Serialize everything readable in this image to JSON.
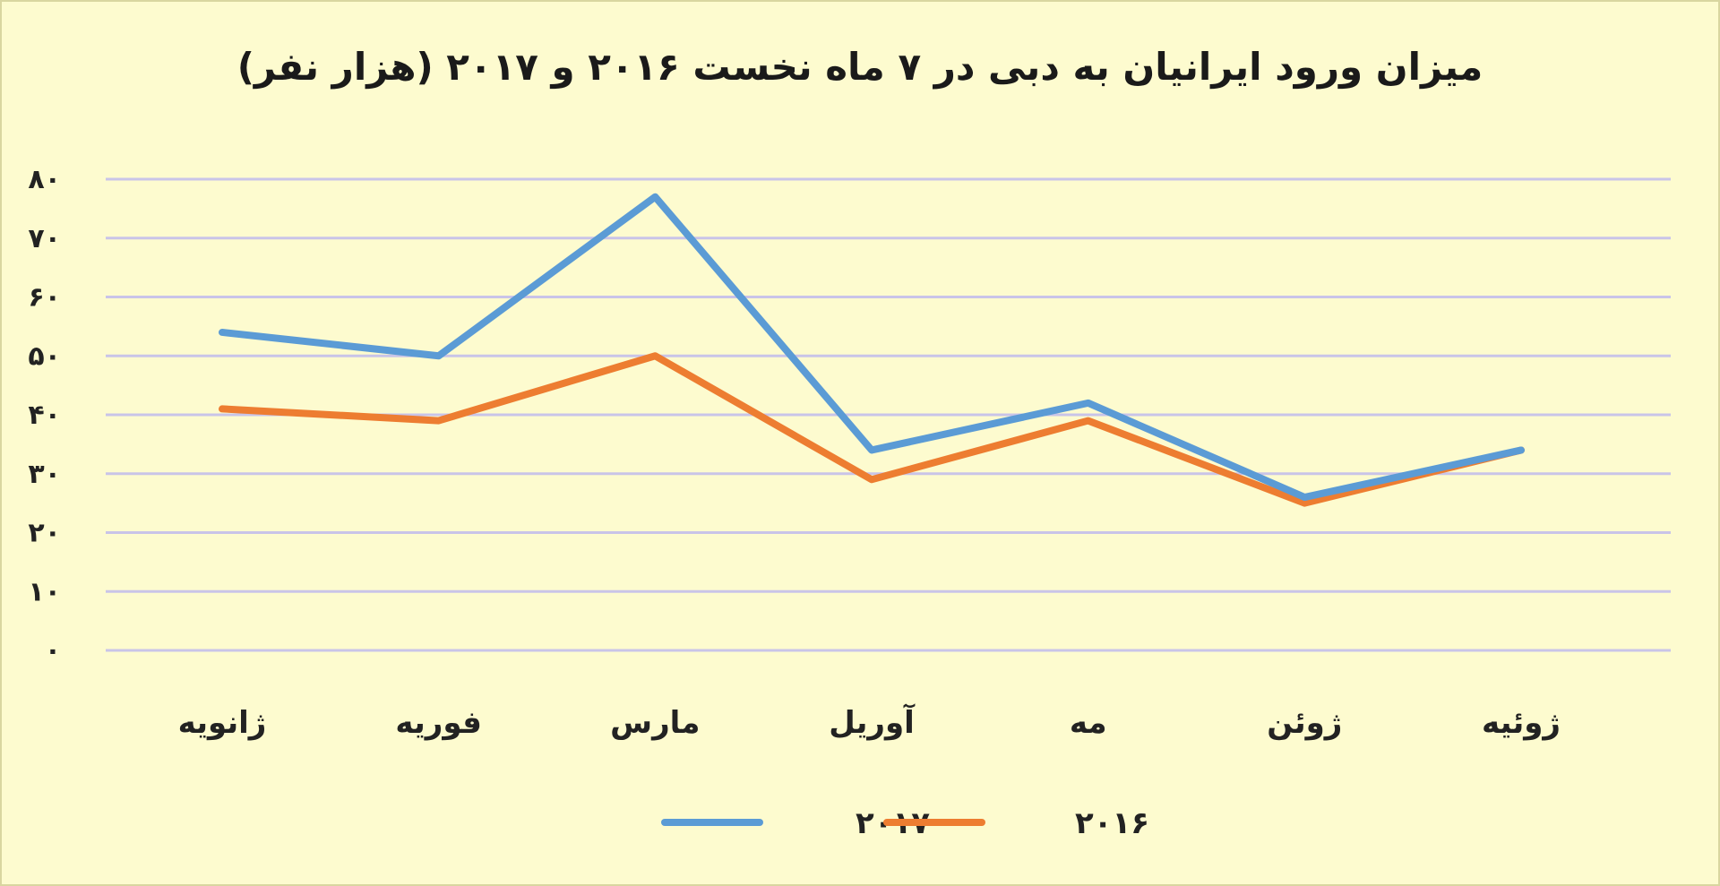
{
  "chart_data": {
    "type": "line",
    "title": "میزان ورود ایرانیان به دبی در ۷ ماه نخست ۲۰۱۶ و ۲۰۱۷ (هزار نفر)",
    "categories": [
      "ژانویه",
      "فوریه",
      "مارس",
      "آوریل",
      "مه",
      "ژوئن",
      "ژوئیه"
    ],
    "y_ticks": [
      "۰",
      "۱۰",
      "۲۰",
      "۳۰",
      "۴۰",
      "۵۰",
      "۶۰",
      "۷۰",
      "۸۰"
    ],
    "ylim": [
      0,
      80
    ],
    "grid": true,
    "legend_position": "bottom",
    "series": [
      {
        "name": "۲۰۱۷",
        "color": "#5b9bd5",
        "values": [
          54,
          50,
          77,
          34,
          42,
          26,
          34
        ]
      },
      {
        "name": "۲۰۱۶",
        "color": "#ed7d31",
        "values": [
          41,
          39,
          50,
          29,
          39,
          25,
          34
        ]
      }
    ]
  }
}
